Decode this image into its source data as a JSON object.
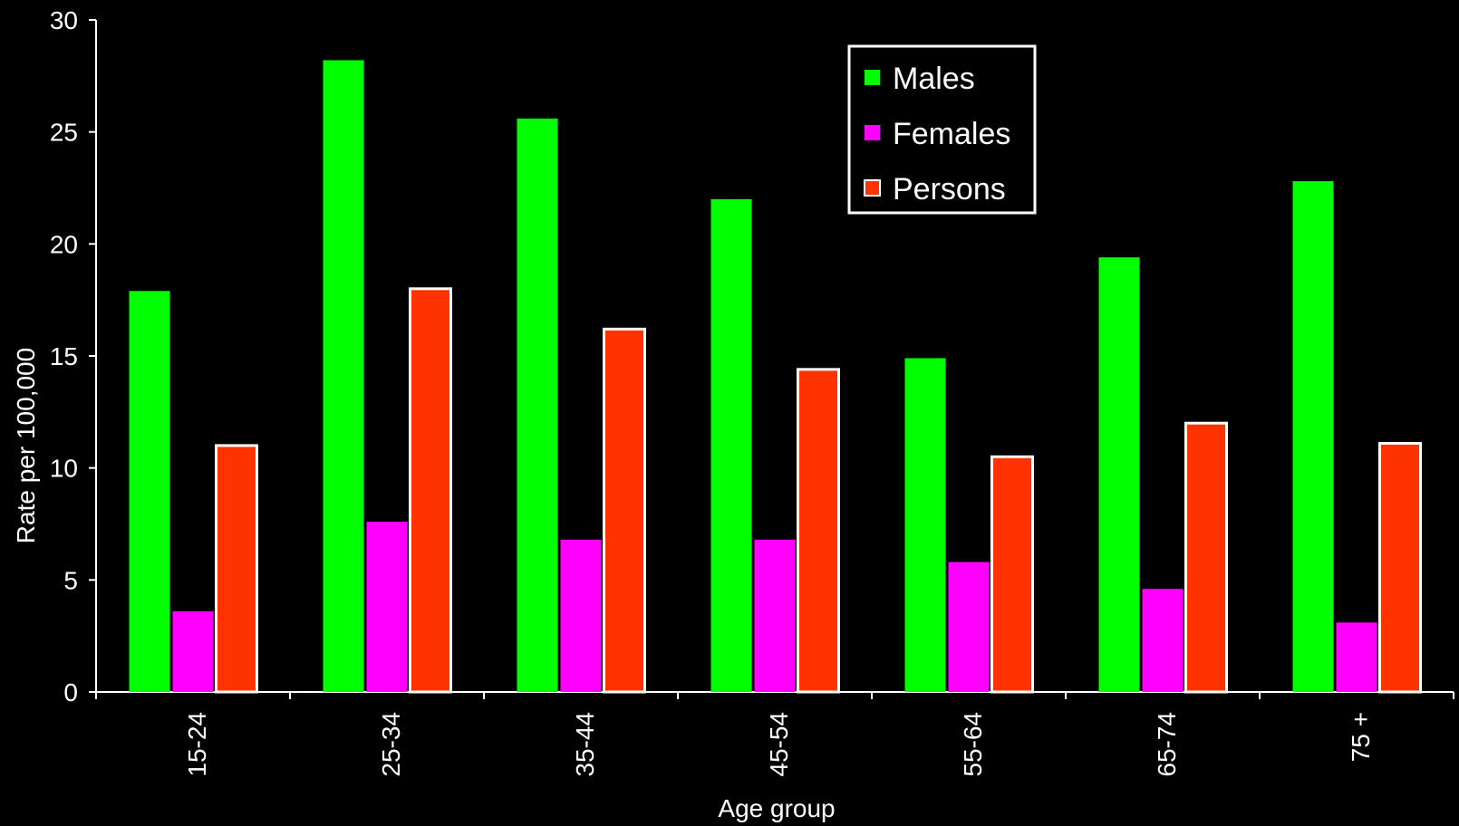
{
  "chart_data": {
    "type": "bar",
    "title": "",
    "xlabel": "Age group",
    "ylabel": "Rate per 100,000",
    "ylim": [
      0,
      30
    ],
    "yticks": [
      0,
      5,
      10,
      15,
      20,
      25,
      30
    ],
    "categories": [
      "15-24",
      "25-34",
      "35-44",
      "45-54",
      "55-64",
      "65-74",
      "75 +"
    ],
    "series": [
      {
        "name": "Males",
        "color": "#00ff00",
        "values": [
          17.9,
          28.2,
          25.6,
          22.0,
          14.9,
          19.4,
          22.8
        ]
      },
      {
        "name": "Females",
        "color": "#ff00ff",
        "values": [
          3.6,
          7.6,
          6.8,
          6.8,
          5.8,
          4.6,
          3.1
        ]
      },
      {
        "name": "Persons",
        "color": "#ff3300",
        "values": [
          11.0,
          18.0,
          16.2,
          14.4,
          10.5,
          12.0,
          11.1
        ]
      }
    ],
    "grid": false,
    "legend_position": "top-right",
    "background": "#000000"
  }
}
